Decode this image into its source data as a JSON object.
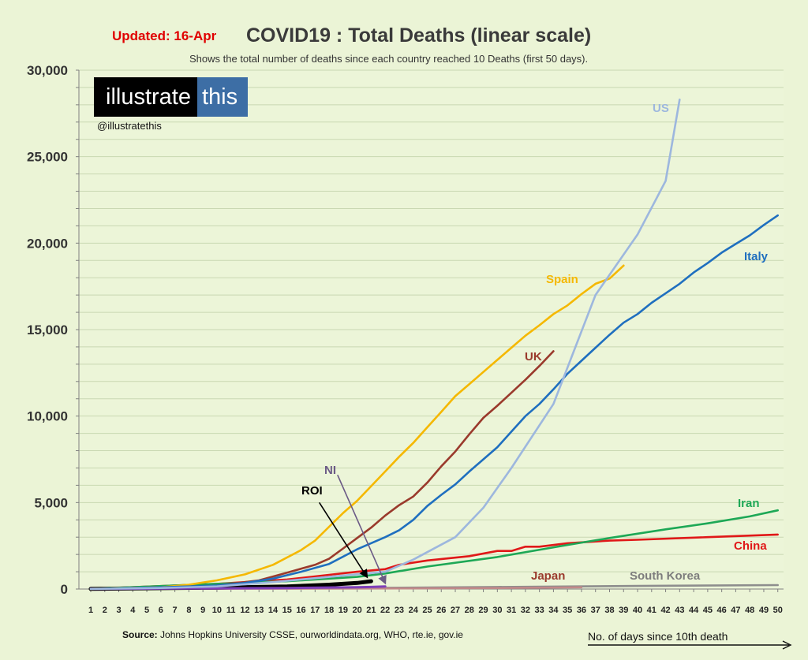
{
  "header": {
    "updated": "Updated: 16-Apr",
    "title": "COVID19 : Total Deaths (linear scale)",
    "subtitle": "Shows the total number of deaths since each country reached 10 Deaths (first 50 days)."
  },
  "branding": {
    "logo_part1": "illustrate",
    "logo_part2": "this",
    "handle": "@illustratethis"
  },
  "footer": {
    "source_label": "Source:",
    "source_text": " Johns Hopkins University CSSE, ourworldindata.org,  WHO, rte.ie, gov.ie",
    "xaxis_note": "No. of days since 10th death"
  },
  "colors": {
    "background": "#ebf4d6",
    "grid": "#c9d8b2",
    "updated": "#e00000",
    "brand_blue": "#3d6ea5"
  },
  "chart_data": {
    "type": "line",
    "title": "COVID19 : Total Deaths (linear scale)",
    "xlabel": "No. of days since 10th death",
    "ylabel": "",
    "xlim": [
      1,
      50
    ],
    "ylim": [
      0,
      30000
    ],
    "x_ticks": [
      1,
      2,
      3,
      4,
      5,
      6,
      7,
      8,
      9,
      10,
      11,
      12,
      13,
      14,
      15,
      16,
      17,
      18,
      19,
      20,
      21,
      22,
      23,
      24,
      25,
      26,
      27,
      28,
      29,
      30,
      31,
      32,
      33,
      34,
      35,
      36,
      37,
      38,
      39,
      40,
      41,
      42,
      43,
      44,
      45,
      46,
      47,
      48,
      49,
      50
    ],
    "y_ticks": [
      0,
      5000,
      10000,
      15000,
      20000,
      25000,
      30000
    ],
    "y_tick_labels": [
      "0",
      "5,000",
      "10,000",
      "15,000",
      "20,000",
      "25,000",
      "30,000"
    ],
    "grid": true,
    "series": [
      {
        "name": "US",
        "color": "#9db7de",
        "x": [
          1,
          6,
          10,
          14,
          18,
          22,
          24,
          27,
          29,
          31,
          34,
          37,
          40,
          42,
          43
        ],
        "y": [
          10,
          60,
          150,
          400,
          700,
          1000,
          1700,
          3000,
          4700,
          7000,
          10700,
          17000,
          20500,
          23600,
          28300
        ]
      },
      {
        "name": "Italy",
        "color": "#1f6fbf",
        "x": [
          1,
          6,
          10,
          12,
          14,
          16,
          18,
          20,
          22,
          23,
          24,
          25,
          26,
          27,
          28,
          29,
          30,
          31,
          32,
          33,
          34,
          35,
          36,
          37,
          38,
          39,
          40,
          41,
          42,
          43,
          44,
          45,
          46,
          47,
          48,
          49,
          50
        ],
        "y": [
          10,
          100,
          200,
          350,
          600,
          1000,
          1450,
          2300,
          3000,
          3400,
          4000,
          4800,
          5450,
          6050,
          6800,
          7500,
          8200,
          9100,
          10000,
          10700,
          11550,
          12450,
          13200,
          13950,
          14700,
          15400,
          15900,
          16550,
          17100,
          17650,
          18300,
          18850,
          19450,
          19950,
          20450,
          21050,
          21600
        ]
      },
      {
        "name": "Spain",
        "color": "#f5b800",
        "x": [
          1,
          6,
          8,
          10,
          12,
          14,
          16,
          17,
          18,
          19,
          20,
          21,
          22,
          23,
          24,
          25,
          26,
          27,
          28,
          29,
          30,
          31,
          32,
          33,
          34,
          35,
          36,
          37,
          38,
          39
        ],
        "y": [
          10,
          100,
          250,
          500,
          850,
          1400,
          2250,
          2800,
          3600,
          4400,
          5100,
          5950,
          6800,
          7650,
          8450,
          9350,
          10250,
          11150,
          11850,
          12550,
          13250,
          13950,
          14650,
          15250,
          15900,
          16400,
          17050,
          17650,
          17950,
          18700
        ]
      },
      {
        "name": "UK",
        "color": "#9a3a2c",
        "x": [
          1,
          6,
          10,
          13,
          15,
          17,
          18,
          19,
          20,
          21,
          22,
          23,
          24,
          25,
          26,
          27,
          28,
          29,
          30,
          31,
          32,
          33,
          34
        ],
        "y": [
          10,
          100,
          200,
          500,
          950,
          1400,
          1750,
          2350,
          2950,
          3550,
          4250,
          4850,
          5350,
          6150,
          7100,
          7950,
          8950,
          9900,
          10600,
          11350,
          12100,
          12900,
          13750
        ]
      },
      {
        "name": "Iran",
        "color": "#1da856",
        "x": [
          1,
          10,
          15,
          20,
          22,
          25,
          30,
          35,
          38,
          40,
          42,
          45,
          48,
          50
        ],
        "y": [
          10,
          300,
          450,
          700,
          900,
          1300,
          1850,
          2550,
          2950,
          3200,
          3450,
          3800,
          4200,
          4550
        ]
      },
      {
        "name": "China",
        "color": "#e01818",
        "x": [
          1,
          10,
          15,
          20,
          22,
          23,
          25,
          28,
          30,
          31,
          32,
          33,
          35,
          36,
          38,
          40,
          45,
          50
        ],
        "y": [
          10,
          300,
          550,
          1000,
          1150,
          1400,
          1650,
          1900,
          2200,
          2200,
          2450,
          2450,
          2650,
          2700,
          2800,
          2850,
          3000,
          3150
        ]
      },
      {
        "name": "NI",
        "color": "#7e3fb8",
        "x": [
          1,
          10,
          15,
          20,
          21,
          22
        ],
        "y": [
          10,
          40,
          60,
          100,
          120,
          150
        ]
      },
      {
        "name": "ROI",
        "color": "#000000",
        "x": [
          1,
          10,
          15,
          18,
          20,
          21
        ],
        "y": [
          10,
          80,
          150,
          250,
          350,
          450
        ]
      },
      {
        "name": "Japan",
        "color": "#c28a8a",
        "x": [
          1,
          15,
          25,
          30,
          35,
          36
        ],
        "y": [
          10,
          20,
          40,
          60,
          90,
          100
        ]
      },
      {
        "name": "South Korea",
        "color": "#8d8d8d",
        "x": [
          1,
          20,
          30,
          40,
          50
        ],
        "y": [
          10,
          60,
          120,
          180,
          230
        ]
      }
    ],
    "annotations": [
      {
        "text": "NI",
        "color": "#6b5a86",
        "arrow_from": [
          18.6,
          6600
        ],
        "arrow_to": [
          22,
          350
        ]
      },
      {
        "text": "ROI",
        "color": "#000000",
        "arrow_from": [
          17.3,
          5000
        ],
        "arrow_to": [
          20.7,
          700
        ]
      }
    ],
    "legend": "inline labels next to each line"
  }
}
